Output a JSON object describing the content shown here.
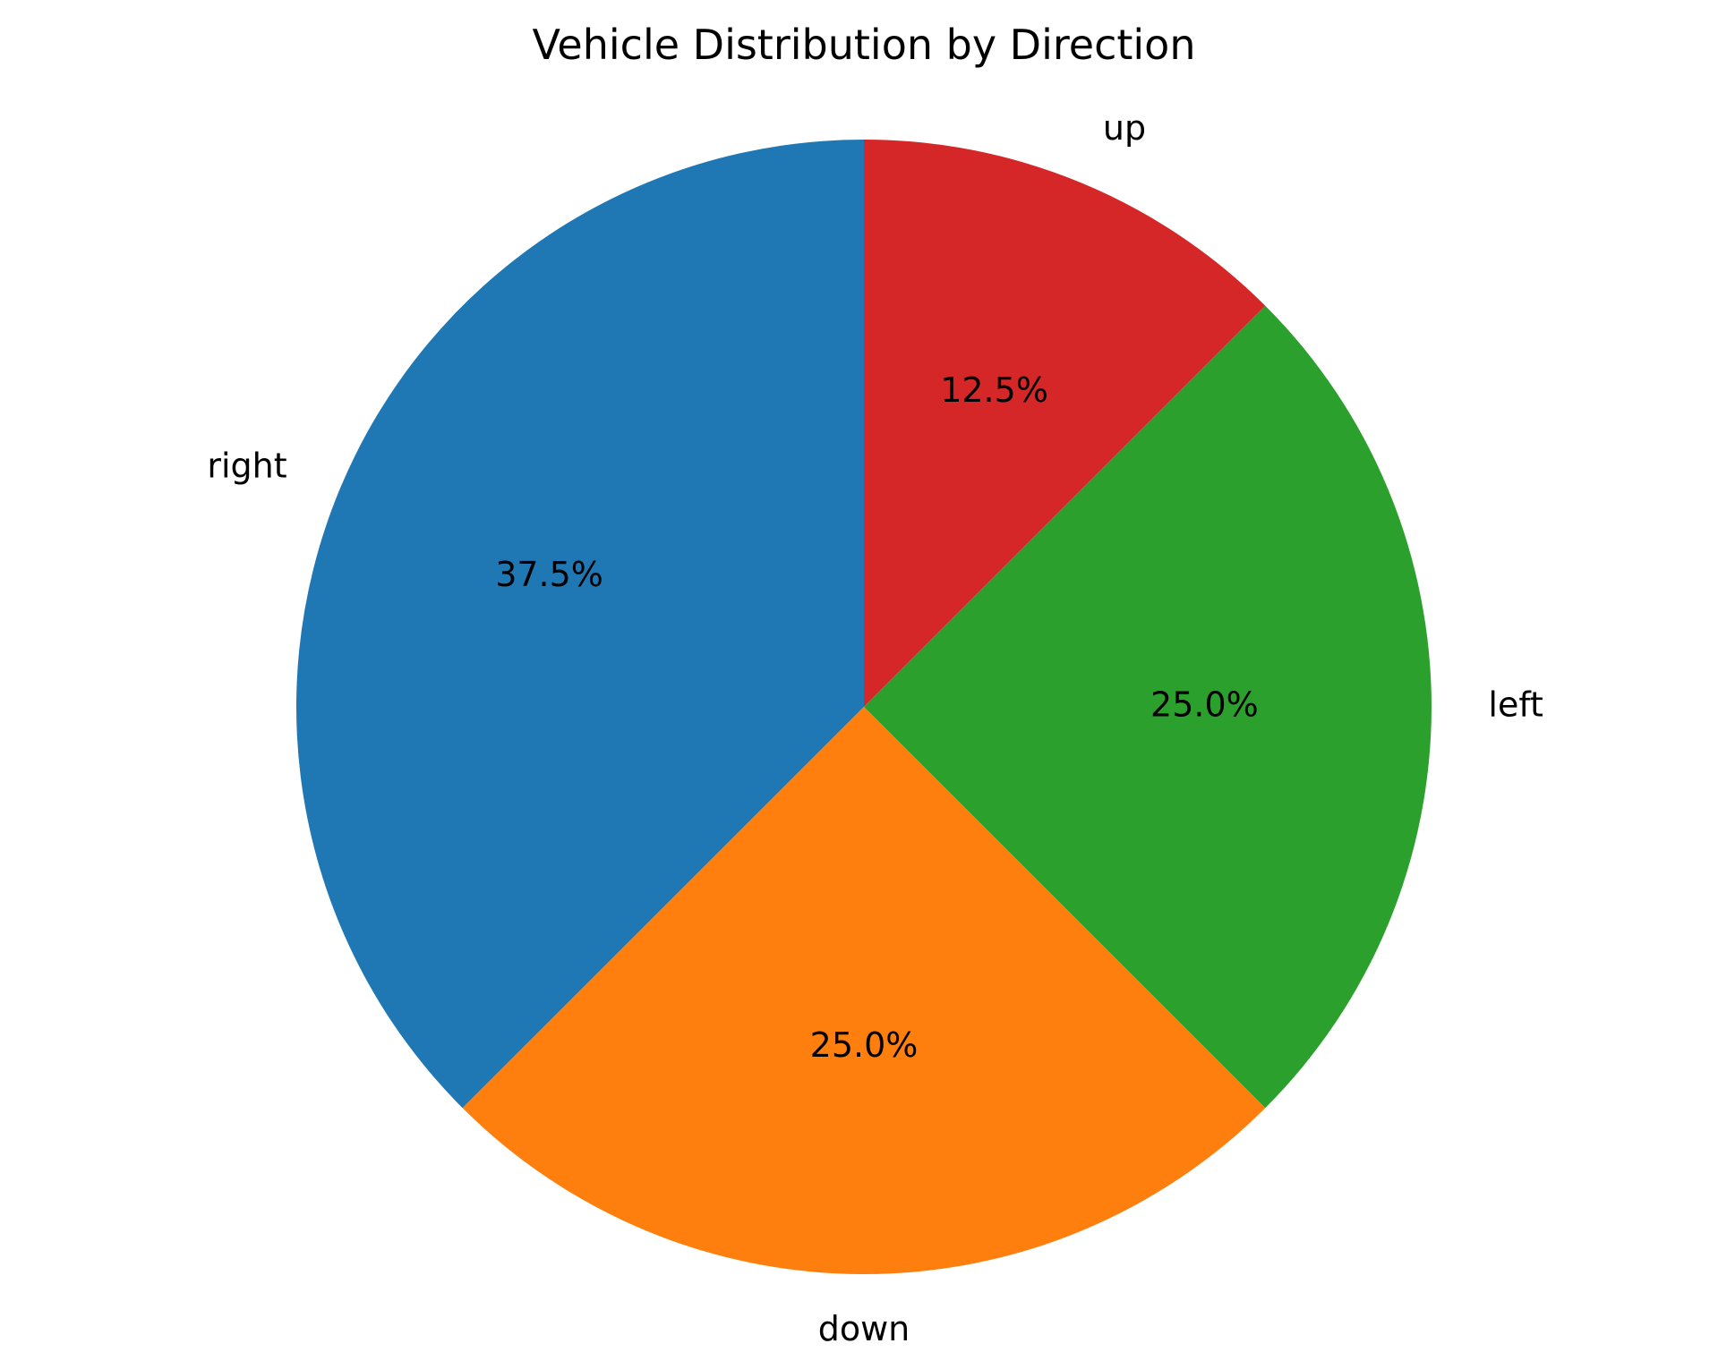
{
  "chart_data": {
    "type": "pie",
    "title": "Vehicle Distribution by Direction",
    "categories": [
      "right",
      "down",
      "left",
      "up"
    ],
    "values": [
      37.5,
      25.0,
      25.0,
      12.5
    ],
    "percent_labels": [
      "37.5%",
      "25.0%",
      "25.0%",
      "12.5%"
    ],
    "colors": [
      "#1f77b4",
      "#ff7f0e",
      "#2ca02c",
      "#d62728"
    ],
    "start_angle_deg": 90,
    "direction": "counterclockwise",
    "legend": "none"
  }
}
